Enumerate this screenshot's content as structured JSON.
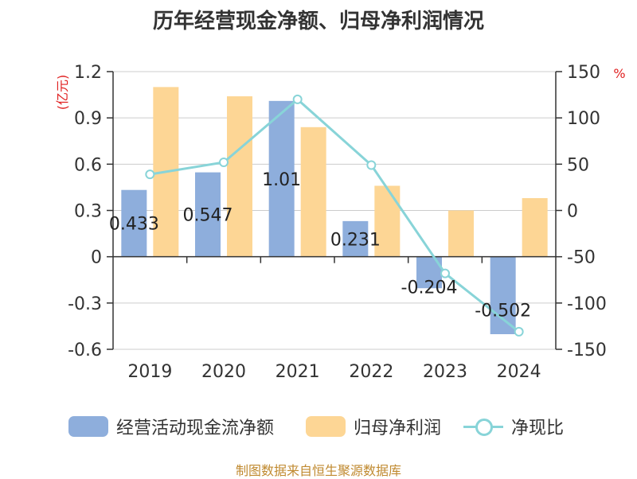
{
  "chart_data": {
    "type": "bar",
    "title": "历年经营现金净额、归母净利润情况",
    "categories": [
      "2019",
      "2020",
      "2021",
      "2022",
      "2023",
      "2024"
    ],
    "series": [
      {
        "name": "经营活动现金流净额",
        "type": "bar",
        "axis": "left",
        "values": [
          0.433,
          0.547,
          1.01,
          0.231,
          -0.204,
          -0.502
        ],
        "color": "#8eaedc",
        "data_labels": [
          "0.433",
          "0.547",
          "1.01",
          "0.231",
          "-0.204",
          "-0.502"
        ]
      },
      {
        "name": "归母净利润",
        "type": "bar",
        "axis": "left",
        "values": [
          1.1,
          1.04,
          0.84,
          0.46,
          0.3,
          0.38
        ],
        "color": "#fdd695"
      },
      {
        "name": "净现比",
        "type": "line",
        "axis": "right",
        "values": [
          39,
          52,
          120,
          49,
          -68,
          -131
        ],
        "color": "#88d4d8"
      }
    ],
    "y_left": {
      "unit": "(亿元)",
      "ylim": [
        -0.6,
        1.2
      ],
      "ticks": [
        "1.2",
        "0.9",
        "0.6",
        "0.3",
        "0",
        "-0.3",
        "-0.6"
      ]
    },
    "y_right": {
      "unit": "%",
      "ylim": [
        -150,
        150
      ],
      "ticks": [
        "150",
        "100",
        "50",
        "0",
        "-50",
        "-100",
        "-150"
      ]
    },
    "grid": true,
    "legend_position": "bottom",
    "source": "制图数据来自恒生聚源数据库"
  }
}
